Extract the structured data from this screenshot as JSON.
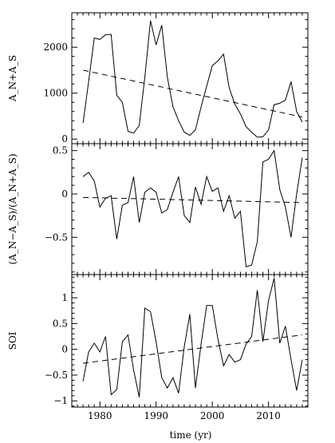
{
  "chart_data": [
    {
      "type": "line",
      "ylabel": "A_N+A_S",
      "xlim": [
        1975,
        2017
      ],
      "ylim": [
        -100,
        2750
      ],
      "xticks": [
        1980,
        1990,
        2000,
        2010
      ],
      "yticks": [
        0,
        1000,
        2000
      ],
      "x": [
        1977,
        1978,
        1979,
        1980,
        1981,
        1982,
        1983,
        1984,
        1985,
        1986,
        1987,
        1988,
        1989,
        1990,
        1991,
        1992,
        1993,
        1994,
        1995,
        1996,
        1997,
        1998,
        1999,
        2000,
        2001,
        2002,
        2003,
        2004,
        2005,
        2006,
        2007,
        2008,
        2009,
        2010,
        2011,
        2012,
        2013,
        2014,
        2015,
        2016
      ],
      "y": [
        350,
        1250,
        2200,
        2170,
        2270,
        2280,
        950,
        800,
        170,
        130,
        300,
        1350,
        2580,
        2050,
        2480,
        1350,
        700,
        400,
        150,
        80,
        200,
        700,
        1150,
        1600,
        1700,
        1850,
        1120,
        760,
        550,
        270,
        150,
        40,
        50,
        200,
        750,
        780,
        850,
        1250,
        600,
        370
      ],
      "trend": {
        "x": [
          1977,
          2016
        ],
        "y": [
          1500,
          480
        ]
      }
    },
    {
      "type": "line",
      "ylabel": "(A_N−A_S)/(A_N+A_S)",
      "xlim": [
        1975,
        2017
      ],
      "ylim": [
        -0.93,
        0.58
      ],
      "xticks": [
        1980,
        1990,
        2000,
        2010
      ],
      "yticks": [
        -0.5,
        0,
        0.5
      ],
      "x": [
        1977,
        1978,
        1979,
        1980,
        1981,
        1982,
        1983,
        1984,
        1985,
        1986,
        1987,
        1988,
        1989,
        1990,
        1991,
        1992,
        1993,
        1994,
        1995,
        1996,
        1997,
        1998,
        1999,
        2000,
        2001,
        2002,
        2003,
        2004,
        2005,
        2006,
        2007,
        2008,
        2009,
        2010,
        2011,
        2012,
        2013,
        2014,
        2015,
        2016
      ],
      "y": [
        0.2,
        0.25,
        0.15,
        -0.15,
        -0.05,
        -0.02,
        -0.52,
        -0.13,
        -0.1,
        0.2,
        -0.33,
        0.02,
        0.07,
        0.02,
        -0.22,
        -0.18,
        0.02,
        0.2,
        -0.25,
        -0.33,
        0.08,
        -0.12,
        0.2,
        0.03,
        0.07,
        -0.2,
        -0.02,
        -0.28,
        -0.2,
        -0.84,
        -0.82,
        -0.55,
        0.37,
        0.4,
        0.5,
        0.05,
        -0.15,
        -0.5,
        0.0,
        0.42
      ],
      "trend": {
        "x": [
          1977,
          2016
        ],
        "y": [
          -0.04,
          -0.1
        ]
      }
    },
    {
      "type": "line",
      "ylabel": "SOI",
      "xlabel": "time (yr)",
      "xlim": [
        1975,
        2017
      ],
      "ylim": [
        -1.12,
        1.45
      ],
      "xticks": [
        1980,
        1990,
        2000,
        2010
      ],
      "yticks": [
        -1,
        -0.5,
        0,
        0.5,
        1
      ],
      "x": [
        1977,
        1978,
        1979,
        1980,
        1981,
        1982,
        1983,
        1984,
        1985,
        1986,
        1987,
        1988,
        1989,
        1990,
        1991,
        1992,
        1993,
        1994,
        1995,
        1996,
        1997,
        1998,
        1999,
        2000,
        2001,
        2002,
        2003,
        2004,
        2005,
        2006,
        2007,
        2008,
        2009,
        2010,
        2011,
        2012,
        2013,
        2014,
        2015,
        2016
      ],
      "y": [
        -0.62,
        -0.05,
        0.12,
        -0.05,
        0.25,
        -0.88,
        -0.78,
        0.15,
        0.28,
        -0.4,
        -0.93,
        0.8,
        0.73,
        0.15,
        -0.55,
        -0.75,
        -0.55,
        -0.85,
        0.05,
        0.68,
        -0.75,
        0.1,
        0.85,
        0.85,
        0.2,
        -0.32,
        -0.1,
        -0.25,
        -0.2,
        0.1,
        0.25,
        1.15,
        0.15,
        0.95,
        1.38,
        0.12,
        0.45,
        -0.2,
        -0.8,
        -0.2
      ],
      "trend": {
        "x": [
          1977,
          2016
        ],
        "y": [
          -0.27,
          0.28
        ]
      }
    }
  ]
}
